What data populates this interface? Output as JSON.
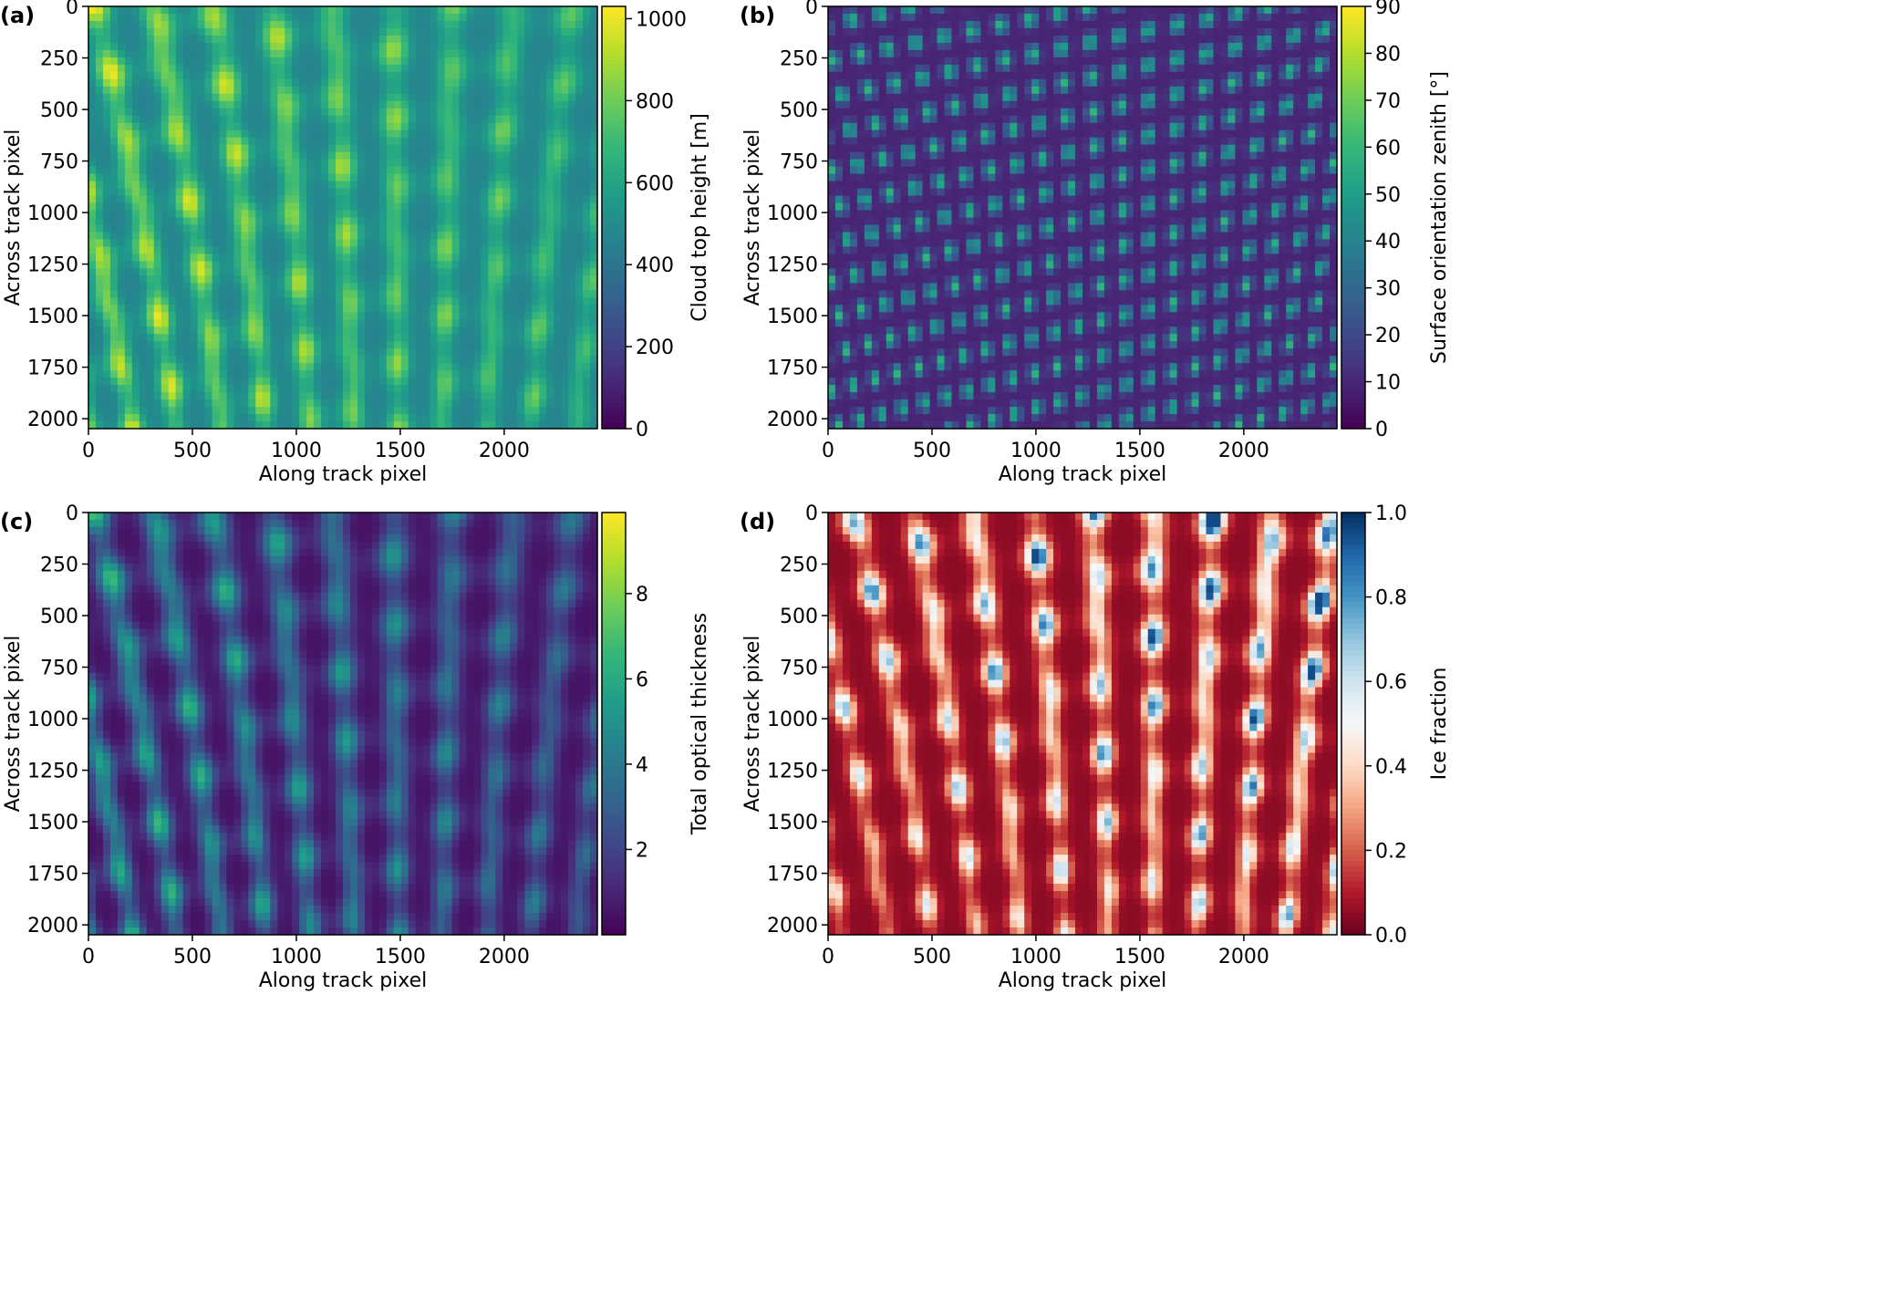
{
  "figure": {
    "background": "#ffffff"
  },
  "chart_data": [
    {
      "type": "heatmap",
      "panel_label": "(a)",
      "xlabel": "Along track pixel",
      "ylabel": "Across track pixel",
      "xlim": [
        0,
        2448
      ],
      "ylim": [
        2048,
        0
      ],
      "xticks": [
        0,
        500,
        1000,
        1500,
        2000
      ],
      "yticks": [
        0,
        250,
        500,
        750,
        1000,
        1250,
        1500,
        1750,
        2000
      ],
      "colormap": "viridis",
      "colorbar": {
        "label": "Cloud top height [m]",
        "range": [
          0,
          1030
        ],
        "ticks": [
          0,
          200,
          400,
          600,
          800,
          1000
        ]
      },
      "field": {
        "kind": "cloud_streets",
        "base": 0.45,
        "amp": 0.5,
        "seed": 1
      }
    },
    {
      "type": "heatmap",
      "panel_label": "(b)",
      "xlabel": "Along track pixel",
      "ylabel": "Across track pixel",
      "xlim": [
        0,
        2448
      ],
      "ylim": [
        2048,
        0
      ],
      "xticks": [
        0,
        500,
        1000,
        1500,
        2000
      ],
      "yticks": [
        0,
        250,
        500,
        750,
        1000,
        1250,
        1500,
        1750,
        2000
      ],
      "colormap": "viridis",
      "colorbar": {
        "label": "Surface orientation zenith [°]",
        "range": [
          0,
          90
        ],
        "ticks": [
          0,
          10,
          20,
          30,
          40,
          50,
          60,
          70,
          80,
          90
        ]
      },
      "field": {
        "kind": "cloud_edges",
        "base": 0.1,
        "amp": 0.55,
        "seed": 1
      }
    },
    {
      "type": "heatmap",
      "panel_label": "(c)",
      "xlabel": "Along track pixel",
      "ylabel": "Across track pixel",
      "xlim": [
        0,
        2448
      ],
      "ylim": [
        2048,
        0
      ],
      "xticks": [
        0,
        500,
        1000,
        1500,
        2000
      ],
      "yticks": [
        0,
        250,
        500,
        750,
        1000,
        1250,
        1500,
        1750,
        2000
      ],
      "colormap": "viridis",
      "colorbar": {
        "label": "Total optical thickness",
        "range": [
          0,
          9.9
        ],
        "ticks": [
          2,
          4,
          6,
          8
        ]
      },
      "field": {
        "kind": "cloud_streets",
        "base": 0.05,
        "amp": 0.6,
        "seed": 1
      }
    },
    {
      "type": "heatmap",
      "panel_label": "(d)",
      "xlabel": "Along track pixel",
      "ylabel": "Across track pixel",
      "xlim": [
        0,
        2448
      ],
      "ylim": [
        2048,
        0
      ],
      "xticks": [
        0,
        500,
        1000,
        1500,
        2000
      ],
      "yticks": [
        0,
        250,
        500,
        750,
        1000,
        1250,
        1500,
        1750,
        2000
      ],
      "colormap": "RdBu",
      "colorbar": {
        "label": "Ice fraction",
        "range": [
          0,
          1
        ],
        "ticks": [
          0.0,
          0.2,
          0.4,
          0.6,
          0.8,
          1.0
        ],
        "tick_labels": [
          "0.0",
          "0.2",
          "0.4",
          "0.6",
          "0.8",
          "1.0"
        ]
      },
      "field": {
        "kind": "ice_fraction",
        "base": 0.05,
        "amp": 0.9,
        "seed": 2
      }
    }
  ]
}
